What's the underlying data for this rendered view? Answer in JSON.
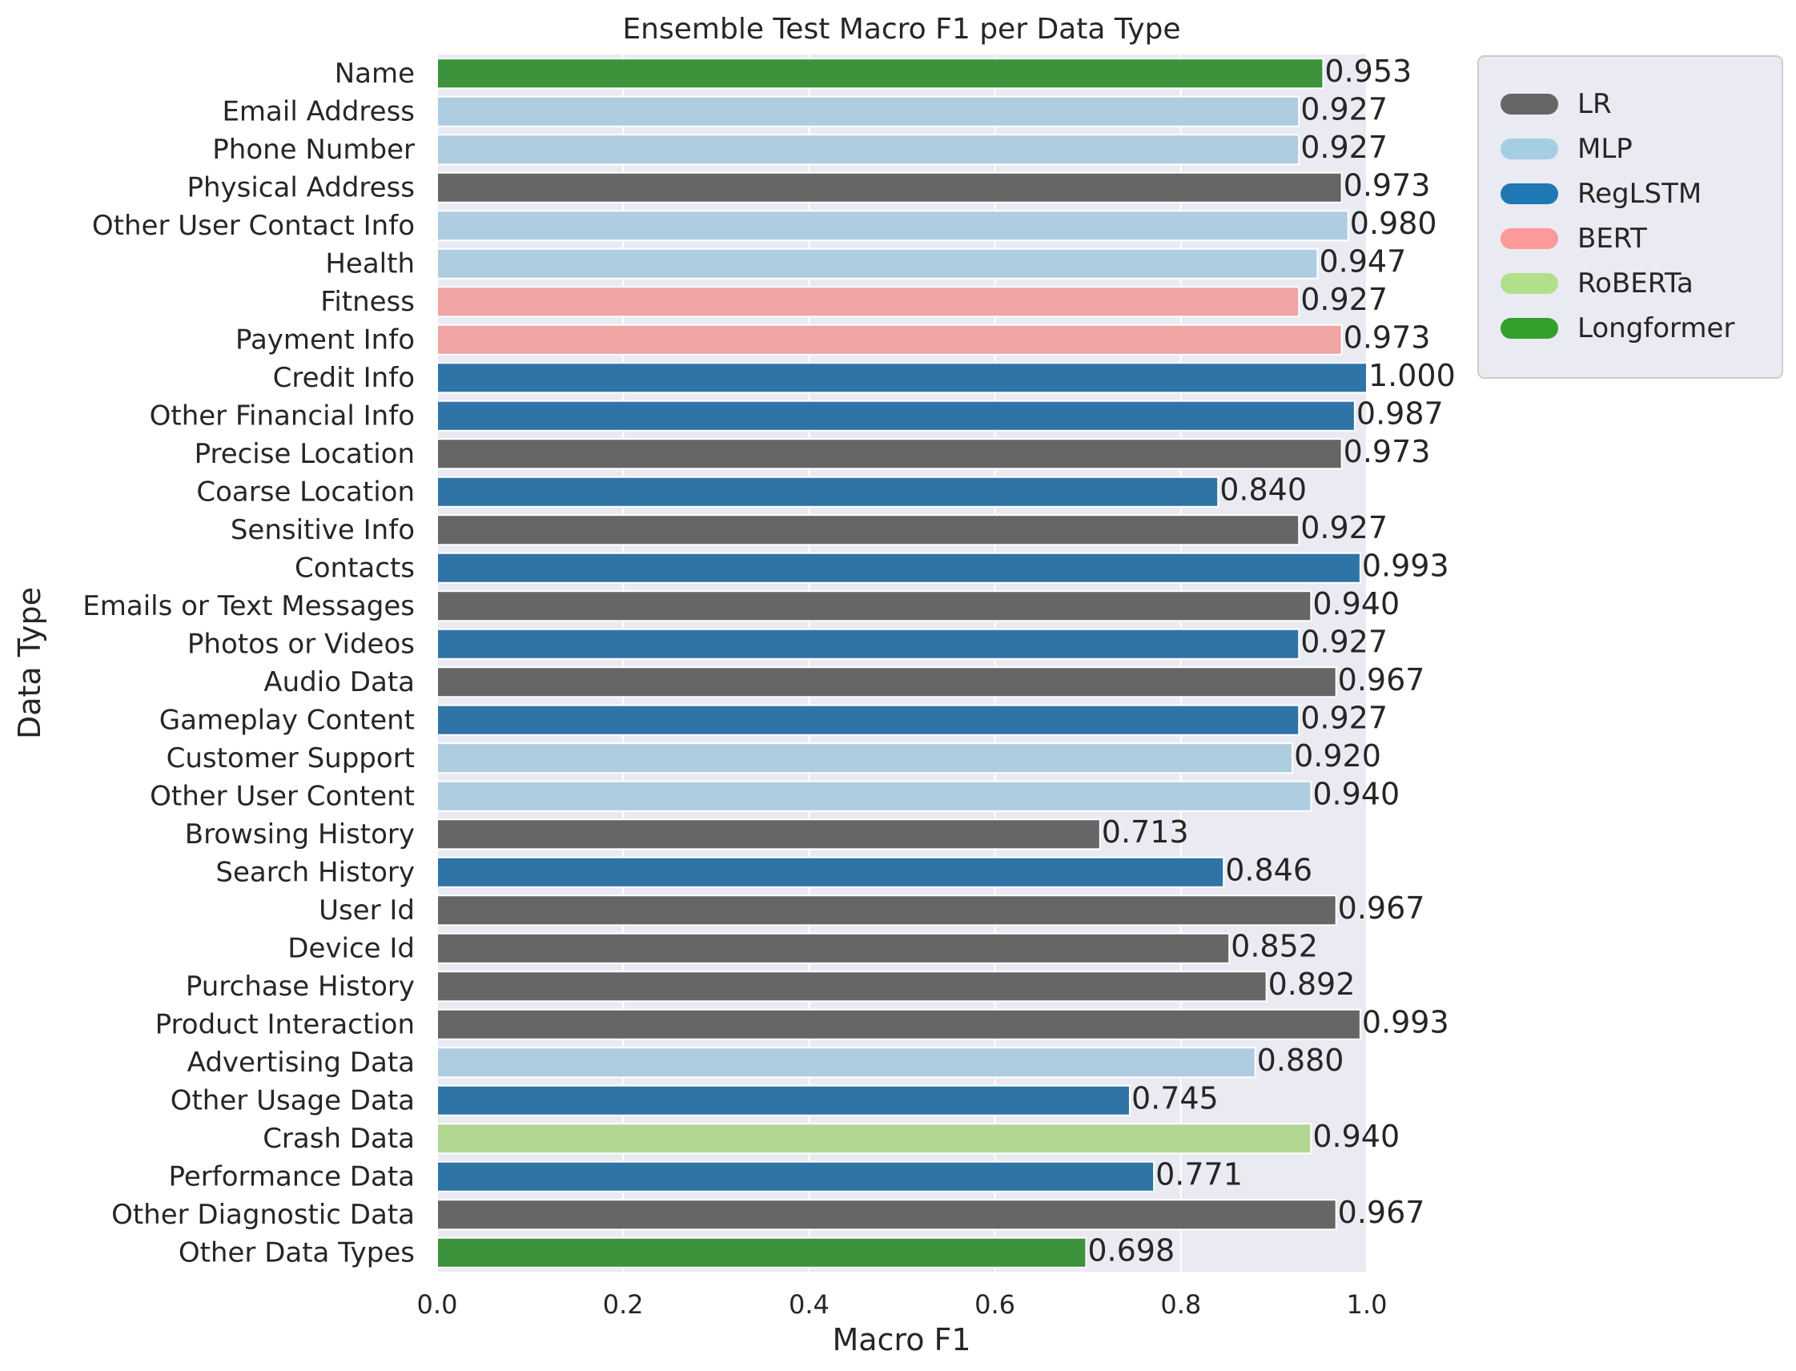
{
  "chart_data": {
    "type": "bar",
    "orientation": "horizontal",
    "title": "Ensemble Test Macro F1 per Data Type",
    "xlabel": "Macro F1",
    "ylabel": "Data Type",
    "xlim": [
      0,
      1
    ],
    "xticks": [
      0.0,
      0.2,
      0.4,
      0.6,
      0.8,
      1.0
    ],
    "xtick_labels": [
      "0.0",
      "0.2",
      "0.4",
      "0.6",
      "0.8",
      "1.0"
    ],
    "grid": true,
    "legend_position": "outside-top-right",
    "models": [
      {
        "name": "LR",
        "color": "#666666"
      },
      {
        "name": "MLP",
        "color": "#aecde1"
      },
      {
        "name": "RegLSTM",
        "color": "#2f74a6"
      },
      {
        "name": "BERT",
        "color": "#f0a4a4"
      },
      {
        "name": "RoBERTa",
        "color": "#b3d693"
      },
      {
        "name": "Longformer",
        "color": "#3d923c"
      }
    ],
    "legend_colors": [
      "#666666",
      "#a6cee3",
      "#1f78b4",
      "#fb9a99",
      "#b2df8a",
      "#33a02c"
    ],
    "bars": [
      {
        "category": "Name",
        "value": 0.953,
        "label": "0.953",
        "model": "Longformer"
      },
      {
        "category": "Email Address",
        "value": 0.927,
        "label": "0.927",
        "model": "MLP"
      },
      {
        "category": "Phone Number",
        "value": 0.927,
        "label": "0.927",
        "model": "MLP"
      },
      {
        "category": "Physical Address",
        "value": 0.973,
        "label": "0.973",
        "model": "LR"
      },
      {
        "category": "Other User Contact Info",
        "value": 0.98,
        "label": "0.980",
        "model": "MLP"
      },
      {
        "category": "Health",
        "value": 0.947,
        "label": "0.947",
        "model": "MLP"
      },
      {
        "category": "Fitness",
        "value": 0.927,
        "label": "0.927",
        "model": "BERT"
      },
      {
        "category": "Payment Info",
        "value": 0.973,
        "label": "0.973",
        "model": "BERT"
      },
      {
        "category": "Credit Info",
        "value": 1.0,
        "label": "1.000",
        "model": "RegLSTM"
      },
      {
        "category": "Other Financial Info",
        "value": 0.987,
        "label": "0.987",
        "model": "RegLSTM"
      },
      {
        "category": "Precise Location",
        "value": 0.973,
        "label": "0.973",
        "model": "LR"
      },
      {
        "category": "Coarse Location",
        "value": 0.84,
        "label": "0.840",
        "model": "RegLSTM"
      },
      {
        "category": "Sensitive Info",
        "value": 0.927,
        "label": "0.927",
        "model": "LR"
      },
      {
        "category": "Contacts",
        "value": 0.993,
        "label": "0.993",
        "model": "RegLSTM"
      },
      {
        "category": "Emails or Text Messages",
        "value": 0.94,
        "label": "0.940",
        "model": "LR"
      },
      {
        "category": "Photos or Videos",
        "value": 0.927,
        "label": "0.927",
        "model": "RegLSTM"
      },
      {
        "category": "Audio Data",
        "value": 0.967,
        "label": "0.967",
        "model": "LR"
      },
      {
        "category": "Gameplay Content",
        "value": 0.927,
        "label": "0.927",
        "model": "RegLSTM"
      },
      {
        "category": "Customer Support",
        "value": 0.92,
        "label": "0.920",
        "model": "MLP"
      },
      {
        "category": "Other User Content",
        "value": 0.94,
        "label": "0.940",
        "model": "MLP"
      },
      {
        "category": "Browsing History",
        "value": 0.713,
        "label": "0.713",
        "model": "LR"
      },
      {
        "category": "Search History",
        "value": 0.846,
        "label": "0.846",
        "model": "RegLSTM"
      },
      {
        "category": "User Id",
        "value": 0.967,
        "label": "0.967",
        "model": "LR"
      },
      {
        "category": "Device Id",
        "value": 0.852,
        "label": "0.852",
        "model": "LR"
      },
      {
        "category": "Purchase History",
        "value": 0.892,
        "label": "0.892",
        "model": "LR"
      },
      {
        "category": "Product Interaction",
        "value": 0.993,
        "label": "0.993",
        "model": "LR"
      },
      {
        "category": "Advertising Data",
        "value": 0.88,
        "label": "0.880",
        "model": "MLP"
      },
      {
        "category": "Other Usage Data",
        "value": 0.745,
        "label": "0.745",
        "model": "RegLSTM"
      },
      {
        "category": "Crash Data",
        "value": 0.94,
        "label": "0.940",
        "model": "RoBERTa"
      },
      {
        "category": "Performance Data",
        "value": 0.771,
        "label": "0.771",
        "model": "RegLSTM"
      },
      {
        "category": "Other Diagnostic Data",
        "value": 0.967,
        "label": "0.967",
        "model": "LR"
      },
      {
        "category": "Other Data Types",
        "value": 0.698,
        "label": "0.698",
        "model": "Longformer"
      }
    ]
  }
}
